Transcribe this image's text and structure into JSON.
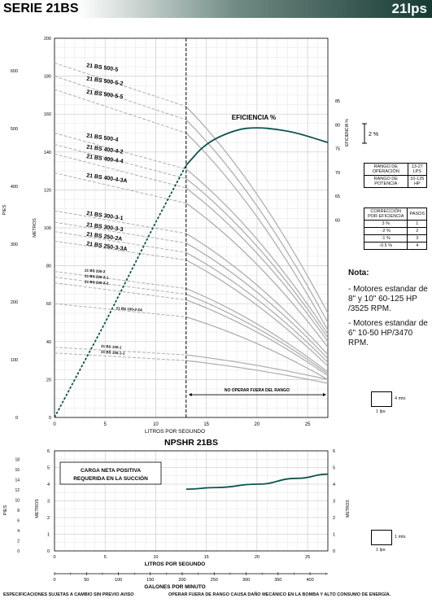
{
  "header": {
    "title": "SERIE 21BS",
    "flow": "21lps"
  },
  "chart_data": [
    {
      "type": "line",
      "title": "",
      "xlabel": "LITROS POR SEGUNDO",
      "xlim": [
        0,
        27
      ],
      "xticks": [
        0,
        5,
        10,
        15,
        20,
        25
      ],
      "ylabel": "METROS",
      "ylim": [
        0,
        200
      ],
      "yticks": [
        0,
        20,
        40,
        60,
        80,
        100,
        120,
        140,
        160,
        180,
        200
      ],
      "y2label": "PIES",
      "y2ticks": [
        0,
        100,
        200,
        300,
        400,
        500,
        600
      ],
      "eff_label": "EFICIENCIA %",
      "eff_axis_ticks": [
        60,
        65,
        70,
        75,
        80,
        85
      ],
      "eff_scale_label": "2 %",
      "operating_limit_x": 13,
      "range_annotation": "NO OPERAR FUERA DEL RANGO",
      "series": [
        {
          "name": "21 BS 500-5",
          "x": [
            0,
            13,
            27
          ],
          "y": [
            187,
            164,
            55
          ]
        },
        {
          "name": "21 BS 500-5-2",
          "x": [
            0,
            13,
            27
          ],
          "y": [
            180,
            157,
            50
          ]
        },
        {
          "name": "21 BS 500-5-5",
          "x": [
            0,
            13,
            27
          ],
          "y": [
            173,
            150,
            46
          ]
        },
        {
          "name": "21 BS 500-4",
          "x": [
            0,
            13,
            27
          ],
          "y": [
            150,
            131,
            44
          ]
        },
        {
          "name": "21 BS 400-4-2",
          "x": [
            0,
            13,
            27
          ],
          "y": [
            144,
            126,
            42
          ]
        },
        {
          "name": "21 BS 400-4-4",
          "x": [
            0,
            13,
            27
          ],
          "y": [
            139,
            121,
            40
          ]
        },
        {
          "name": "21 BS 400-4-3A",
          "x": [
            0,
            13,
            27
          ],
          "y": [
            129,
            113,
            37
          ]
        },
        {
          "name": "21 BS 300-3-1",
          "x": [
            0,
            13,
            27
          ],
          "y": [
            109,
            97,
            33
          ]
        },
        {
          "name": "21 BS 300-3-3",
          "x": [
            0,
            13,
            27
          ],
          "y": [
            103,
            92,
            31
          ]
        },
        {
          "name": "21 BS 250-2A",
          "x": [
            0,
            13,
            27
          ],
          "y": [
            98,
            87,
            29
          ]
        },
        {
          "name": "21 BS 250-3-3A",
          "x": [
            0,
            13,
            27
          ],
          "y": [
            93,
            83,
            27
          ]
        },
        {
          "name": "21 BS 200-2",
          "x": [
            0,
            13,
            27
          ],
          "y": [
            77,
            68,
            24
          ]
        },
        {
          "name": "21 BS 200-2-1",
          "x": [
            0,
            13,
            27
          ],
          "y": [
            74,
            65,
            23
          ]
        },
        {
          "name": "21 BS 200-2-2",
          "x": [
            0,
            13,
            27
          ],
          "y": [
            71,
            62,
            22
          ]
        },
        {
          "name": "21 BS 100-2-2A",
          "x": [
            0,
            13,
            27
          ],
          "y": [
            60,
            53,
            20
          ]
        },
        {
          "name": "21 BS 100-1",
          "x": [
            0,
            13,
            27
          ],
          "y": [
            37,
            33,
            20
          ]
        },
        {
          "name": "21 BS 100-1-1",
          "x": [
            0,
            13,
            27
          ],
          "y": [
            34,
            30,
            18
          ]
        }
      ],
      "efficiency_curve": {
        "x": [
          0,
          5,
          10,
          13,
          15,
          18,
          20,
          22,
          24,
          27
        ],
        "y": [
          0,
          50,
          103,
          133,
          145,
          152,
          153,
          152,
          150,
          145
        ]
      },
      "legend_box_label": "4 mts",
      "legend_box_xlabel": "1 lps"
    },
    {
      "type": "line",
      "title": "NPSHR 21BS",
      "annotation_lines": [
        "CARGA NETA POSITIVA",
        "REQUERIDA EN LA SUCCIÓN"
      ],
      "xlabel": "LITROS POR SEGUNDO",
      "xlim": [
        0,
        27
      ],
      "xticks": [
        0,
        5,
        10,
        15,
        20,
        25
      ],
      "ylabel": "METROS",
      "ylim": [
        0,
        6
      ],
      "yticks": [
        0,
        1,
        2,
        3,
        4,
        5,
        6
      ],
      "y2label": "PIES",
      "y2ticks": [
        0,
        2,
        4,
        6,
        8,
        10,
        12,
        14,
        16,
        18
      ],
      "x2label": "GALONES POR MINUTO",
      "x2ticks": [
        0,
        50,
        100,
        150,
        200,
        250,
        300,
        350,
        400
      ],
      "series": [
        {
          "x": [
            13,
            16,
            20,
            24,
            27
          ],
          "y": [
            3.7,
            3.8,
            4.0,
            4.35,
            4.6
          ]
        }
      ],
      "legend_box_label": "1 mts",
      "legend_box_xlabel": "1 lps"
    }
  ],
  "tables": {
    "range": [
      {
        "label": "RANGO DE OPERACIÓN",
        "value": "13-27 LPS"
      },
      {
        "label": "RANGO DE POTENCIA",
        "value": "10-125 HP"
      }
    ],
    "correction": {
      "header": [
        "CORRECCIÓN POR EFICIENCIA",
        "PASOS"
      ],
      "rows": [
        [
          "3 %",
          "1"
        ],
        [
          "-2 %",
          "2"
        ],
        [
          "-1 %",
          "3"
        ],
        [
          "-0.5 %",
          "4"
        ]
      ]
    }
  },
  "notes": {
    "title": "Nota:",
    "items": [
      "- Motores estandar de 8\" y 10\" 60-125 HP /3525 RPM.",
      "- Motores estandar de 6\" 10-50 HP/3470 RPM."
    ]
  },
  "footer": {
    "left": "ESPECIFICACIONES SUJETAS A CAMBIO SIN PREVIO AVISO",
    "right": "OPERAR FUERA DE RANGO CAUSA DAÑO MECÁNICO EN LA BOMBA Y ALTO CONSUMO DE ENERGÍA."
  }
}
